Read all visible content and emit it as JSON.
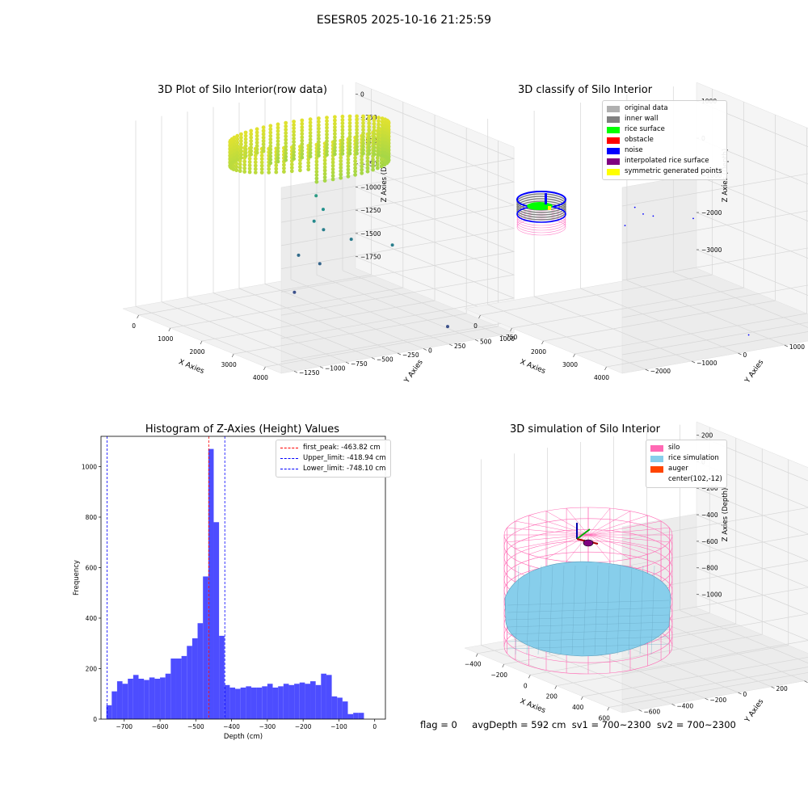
{
  "figure": {
    "title": "ESESR05 2025-10-16 21:25:59",
    "status": {
      "flag": "flag = 0",
      "avg_depth": "avgDepth = 592 cm",
      "sv1": "sv1 = 700~2300",
      "sv2": "sv2 = 700~2300"
    }
  },
  "colors": {
    "original_data": "#b0b0b0",
    "inner_wall": "#808080",
    "rice_surface": "#00ff00",
    "obstacle": "#ff0000",
    "noise": "#0000ff",
    "interpolated_rice_surface": "#800080",
    "symmetric_generated_points": "#ffff00",
    "silo": "#ff69b4",
    "rice_simulation": "#87ceeb",
    "auger": "#ff4500",
    "hist_bar": "#4d4dff",
    "first_peak": "#ff0000",
    "limits": "#0000ff"
  },
  "chart_data": [
    {
      "type": "scatter3d",
      "title": "3D Plot of Silo Interior(row data)",
      "xlabel": "X Axies",
      "ylabel": "Y Axies",
      "zlabel": "Z Axies (Depth)",
      "xticks": [
        "0",
        "1000",
        "2000",
        "3000",
        "4000"
      ],
      "yticks": [
        "−1250",
        "−1000",
        "−750",
        "−500",
        "−250",
        "0",
        "250",
        "500",
        "750"
      ],
      "zticks": [
        "−1750",
        "−1500",
        "−1250",
        "−1000",
        "−750",
        "−500",
        "−250",
        "0"
      ],
      "xlim": [
        -500,
        4200
      ],
      "ylim": [
        -1350,
        800
      ],
      "zlim": [
        -1900,
        100
      ],
      "colormap": "viridis",
      "ring": {
        "center_x": 700,
        "center_y": 0,
        "radius": 700,
        "z_top": -100,
        "z_bottom": -500
      },
      "outliers": [
        {
          "x": 900,
          "y": 0,
          "z": -750
        },
        {
          "x": 950,
          "y": 50,
          "z": -900
        },
        {
          "x": 1000,
          "y": -50,
          "z": -1000
        },
        {
          "x": 800,
          "y": 100,
          "z": -1150
        },
        {
          "x": 1300,
          "y": 200,
          "z": -1200
        },
        {
          "x": 2200,
          "y": 300,
          "z": -1150
        },
        {
          "x": 700,
          "y": -100,
          "z": -1400
        },
        {
          "x": 850,
          "y": 50,
          "z": -1500
        },
        {
          "x": 900,
          "y": -200,
          "z": -1750
        },
        {
          "x": 4000,
          "y": 250,
          "z": -1750
        }
      ]
    },
    {
      "type": "scatter3d",
      "title": "3D classify of Silo Interior",
      "xlabel": "X Axies",
      "ylabel": "Y Axies",
      "zlabel": "Z Axies (Depth)",
      "xticks": [
        "0",
        "1000",
        "2000",
        "3000",
        "4000"
      ],
      "yticks": [
        "−2000",
        "−1000",
        "0",
        "1000",
        "2000"
      ],
      "zticks": [
        "−3000",
        "−2000",
        "−1000",
        "0",
        "1000"
      ],
      "xlim": [
        -500,
        4200
      ],
      "ylim": [
        -2500,
        2200
      ],
      "zlim": [
        -3300,
        1200
      ],
      "legend": [
        "original data",
        "inner wall",
        "rice surface",
        "obstacle",
        "noise",
        "interpolated rice surface",
        "symmetric generated points"
      ],
      "legend_loc": "upper right",
      "noise_points": [
        {
          "x": 900,
          "y": 0,
          "z": -900
        },
        {
          "x": 1000,
          "y": 100,
          "z": -1050
        },
        {
          "x": 1300,
          "y": 100,
          "z": -1000
        },
        {
          "x": 2200,
          "y": 300,
          "z": -800
        },
        {
          "x": 900,
          "y": -200,
          "z": -1300
        },
        {
          "x": 4000,
          "y": 200,
          "z": -3000
        }
      ]
    },
    {
      "type": "bar",
      "title": "Histogram of Z-Axies (Height) Values",
      "xlabel": "Depth (cm)",
      "ylabel": "Frequency",
      "xlim": [
        -765,
        30
      ],
      "ylim": [
        0,
        1120
      ],
      "xticks": [
        -700,
        -600,
        -500,
        -400,
        -300,
        -200,
        -100,
        0
      ],
      "xtick_labels": [
        "−700",
        "−600",
        "−500",
        "−400",
        "−300",
        "−200",
        "−100",
        "0"
      ],
      "yticks": [
        0,
        200,
        400,
        600,
        800,
        1000
      ],
      "bin_start": -750,
      "bin_width": 15,
      "values": [
        55,
        110,
        150,
        140,
        160,
        175,
        160,
        155,
        165,
        160,
        165,
        180,
        240,
        240,
        250,
        290,
        320,
        380,
        565,
        1070,
        780,
        330,
        135,
        125,
        120,
        125,
        130,
        125,
        125,
        130,
        140,
        125,
        130,
        140,
        135,
        140,
        145,
        140,
        150,
        135,
        180,
        175,
        90,
        85,
        70,
        20,
        25,
        25
      ],
      "vlines": [
        {
          "x": -463.82,
          "label": "first_peak: -463.82 cm",
          "color": "#ff0000"
        },
        {
          "x": -418.94,
          "label": "Upper_limit: -418.94 cm",
          "color": "#0000ff"
        },
        {
          "x": -748.1,
          "label": "Lower_limit: -748.10 cm",
          "color": "#0000ff"
        }
      ],
      "legend_loc": "upper right"
    },
    {
      "type": "surface3d",
      "title": "3D simulation of Silo Interior",
      "xlabel": "X Axies",
      "ylabel": "Y Axies",
      "zlabel": "Z Axies (Depth)",
      "xticks": [
        "−400",
        "−200",
        "0",
        "200",
        "400",
        "600"
      ],
      "yticks": [
        "−600",
        "−400",
        "−200",
        "0",
        "200",
        "400",
        "600"
      ],
      "zticks": [
        "−1000",
        "−800",
        "−600",
        "−400",
        "−200",
        "0",
        "200"
      ],
      "xlim": [
        -550,
        750
      ],
      "ylim": [
        -700,
        700
      ],
      "zlim": [
        -1050,
        300
      ],
      "silo": {
        "radius": 650,
        "z_top": 100,
        "z_bottom": -1000
      },
      "rice_surface_depth": -592,
      "auger_center": [
        102,
        -12
      ],
      "legend": [
        "silo",
        "rice simulation",
        "auger",
        "center(102,-12)"
      ],
      "legend_loc": "upper right"
    }
  ]
}
